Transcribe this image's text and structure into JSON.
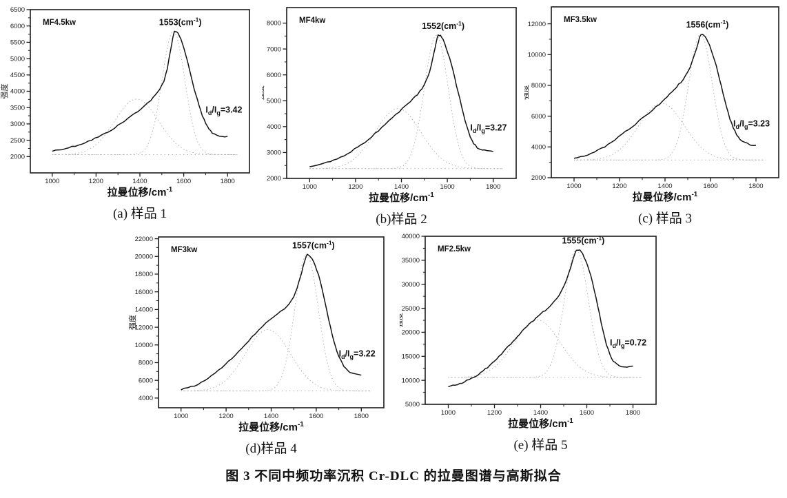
{
  "figure": {
    "caption": "图 3  不同中频功率沉积 Cr-DLC 的拉曼图谱与高斯拟合"
  },
  "axis": {
    "x_label": "拉曼位移/cm",
    "x_label_sup": "-1",
    "y_label": "强度"
  },
  "chart_data": [
    {
      "type": "line",
      "id": "a",
      "caption": "(a) 样品 1",
      "power_label": "MF4.5kw",
      "peak": 1553,
      "peak_label": "1553(cm⁻¹)",
      "id_ig": "=3.42",
      "xlabel": "拉曼位移/cm⁻¹",
      "ylabel": "强度",
      "x_ticks": [
        1000,
        1200,
        1400,
        1600,
        1800
      ],
      "y_ticks": [
        2000,
        2500,
        3000,
        3500,
        4000,
        4500,
        5000,
        5500,
        6000,
        6500
      ],
      "xlim": [
        900,
        1900
      ],
      "ylim": [
        1500,
        6500
      ],
      "baseline": 2060,
      "points": [
        [
          1000,
          2170
        ],
        [
          1030,
          2210
        ],
        [
          1060,
          2250
        ],
        [
          1090,
          2300
        ],
        [
          1120,
          2360
        ],
        [
          1150,
          2430
        ],
        [
          1180,
          2510
        ],
        [
          1210,
          2600
        ],
        [
          1240,
          2700
        ],
        [
          1270,
          2820
        ],
        [
          1300,
          2950
        ],
        [
          1330,
          3090
        ],
        [
          1360,
          3240
        ],
        [
          1390,
          3390
        ],
        [
          1420,
          3550
        ],
        [
          1450,
          3730
        ],
        [
          1470,
          3870
        ],
        [
          1490,
          4050
        ],
        [
          1510,
          4330
        ],
        [
          1525,
          4700
        ],
        [
          1540,
          5250
        ],
        [
          1550,
          5650
        ],
        [
          1558,
          5840
        ],
        [
          1568,
          5830
        ],
        [
          1580,
          5700
        ],
        [
          1595,
          5450
        ],
        [
          1610,
          5100
        ],
        [
          1625,
          4700
        ],
        [
          1640,
          4280
        ],
        [
          1655,
          3900
        ],
        [
          1670,
          3550
        ],
        [
          1685,
          3250
        ],
        [
          1700,
          3010
        ],
        [
          1715,
          2840
        ],
        [
          1730,
          2730
        ],
        [
          1750,
          2660
        ],
        [
          1775,
          2620
        ],
        [
          1800,
          2600
        ]
      ]
    },
    {
      "type": "line",
      "id": "b",
      "caption": "(b)样品 2",
      "power_label": "MF4kw",
      "peak": 1552,
      "peak_label": "1552(cm⁻¹)",
      "id_ig": "=3.27",
      "xlabel": "拉曼位移/cm⁻¹",
      "ylabel": "强度",
      "x_ticks": [
        1000,
        1200,
        1400,
        1600,
        1800
      ],
      "y_ticks": [
        2000,
        3000,
        4000,
        5000,
        6000,
        7000,
        8000
      ],
      "xlim": [
        900,
        1900
      ],
      "ylim": [
        2000,
        8600
      ],
      "baseline": 2380,
      "points": [
        [
          1000,
          2480
        ],
        [
          1030,
          2520
        ],
        [
          1060,
          2570
        ],
        [
          1090,
          2650
        ],
        [
          1120,
          2760
        ],
        [
          1150,
          2890
        ],
        [
          1180,
          3040
        ],
        [
          1210,
          3210
        ],
        [
          1240,
          3400
        ],
        [
          1270,
          3610
        ],
        [
          1300,
          3840
        ],
        [
          1330,
          4080
        ],
        [
          1360,
          4330
        ],
        [
          1390,
          4580
        ],
        [
          1420,
          4820
        ],
        [
          1440,
          4980
        ],
        [
          1460,
          5150
        ],
        [
          1480,
          5350
        ],
        [
          1500,
          5620
        ],
        [
          1515,
          5900
        ],
        [
          1530,
          6350
        ],
        [
          1542,
          6850
        ],
        [
          1552,
          7300
        ],
        [
          1560,
          7530
        ],
        [
          1570,
          7520
        ],
        [
          1582,
          7350
        ],
        [
          1595,
          7050
        ],
        [
          1610,
          6650
        ],
        [
          1625,
          6150
        ],
        [
          1640,
          5600
        ],
        [
          1655,
          5050
        ],
        [
          1670,
          4500
        ],
        [
          1685,
          4000
        ],
        [
          1700,
          3620
        ],
        [
          1715,
          3350
        ],
        [
          1730,
          3200
        ],
        [
          1750,
          3100
        ],
        [
          1775,
          3060
        ],
        [
          1800,
          3020
        ]
      ]
    },
    {
      "type": "line",
      "id": "c",
      "caption": "(c) 样品 3",
      "power_label": "MF3.5kw",
      "peak": 1556,
      "peak_label": "1556(cm⁻¹)",
      "id_ig": "=3.23",
      "xlabel": "拉曼位移/cm⁻¹",
      "ylabel": "强度",
      "x_ticks": [
        1000,
        1200,
        1400,
        1600,
        1800
      ],
      "y_ticks": [
        2000,
        4000,
        6000,
        8000,
        10000,
        12000
      ],
      "xlim": [
        900,
        1900
      ],
      "ylim": [
        2000,
        13100
      ],
      "baseline": 3150,
      "points": [
        [
          1000,
          3250
        ],
        [
          1030,
          3360
        ],
        [
          1060,
          3500
        ],
        [
          1090,
          3680
        ],
        [
          1120,
          3900
        ],
        [
          1150,
          4170
        ],
        [
          1180,
          4480
        ],
        [
          1210,
          4810
        ],
        [
          1240,
          5150
        ],
        [
          1270,
          5500
        ],
        [
          1300,
          5860
        ],
        [
          1330,
          6230
        ],
        [
          1360,
          6600
        ],
        [
          1390,
          6960
        ],
        [
          1410,
          7300
        ],
        [
          1430,
          7600
        ],
        [
          1450,
          7900
        ],
        [
          1470,
          8200
        ],
        [
          1490,
          8600
        ],
        [
          1510,
          9200
        ],
        [
          1525,
          9800
        ],
        [
          1540,
          10500
        ],
        [
          1552,
          11100
        ],
        [
          1560,
          11350
        ],
        [
          1570,
          11300
        ],
        [
          1582,
          11050
        ],
        [
          1595,
          10600
        ],
        [
          1610,
          10000
        ],
        [
          1625,
          9250
        ],
        [
          1640,
          8400
        ],
        [
          1655,
          7500
        ],
        [
          1670,
          6600
        ],
        [
          1685,
          5850
        ],
        [
          1700,
          5250
        ],
        [
          1715,
          4800
        ],
        [
          1730,
          4500
        ],
        [
          1750,
          4280
        ],
        [
          1775,
          4150
        ],
        [
          1800,
          4080
        ]
      ]
    },
    {
      "type": "line",
      "id": "d",
      "caption": "(d)样品 4",
      "power_label": "MF3kw",
      "peak": 1557,
      "peak_label": "1557(cm⁻¹)",
      "id_ig": "=3.22",
      "xlabel": "拉曼位移/cm⁻¹",
      "ylabel": "强度",
      "x_ticks": [
        1000,
        1200,
        1400,
        1600,
        1800
      ],
      "y_ticks": [
        4000,
        6000,
        8000,
        10000,
        12000,
        14000,
        16000,
        18000,
        20000,
        22000
      ],
      "xlim": [
        900,
        1900
      ],
      "ylim": [
        2900,
        22200
      ],
      "baseline": 4800,
      "points": [
        [
          1000,
          4950
        ],
        [
          1030,
          5150
        ],
        [
          1060,
          5400
        ],
        [
          1090,
          5750
        ],
        [
          1120,
          6200
        ],
        [
          1150,
          6750
        ],
        [
          1180,
          7400
        ],
        [
          1210,
          8100
        ],
        [
          1240,
          8850
        ],
        [
          1270,
          9650
        ],
        [
          1300,
          10450
        ],
        [
          1330,
          11250
        ],
        [
          1360,
          12050
        ],
        [
          1390,
          12750
        ],
        [
          1420,
          13350
        ],
        [
          1440,
          13750
        ],
        [
          1460,
          14150
        ],
        [
          1480,
          14700
        ],
        [
          1500,
          15500
        ],
        [
          1515,
          16400
        ],
        [
          1530,
          17700
        ],
        [
          1542,
          18900
        ],
        [
          1552,
          19800
        ],
        [
          1560,
          20200
        ],
        [
          1570,
          20100
        ],
        [
          1582,
          19700
        ],
        [
          1595,
          19000
        ],
        [
          1610,
          17900
        ],
        [
          1625,
          16400
        ],
        [
          1640,
          14700
        ],
        [
          1655,
          12900
        ],
        [
          1670,
          11200
        ],
        [
          1685,
          9800
        ],
        [
          1700,
          8700
        ],
        [
          1715,
          7900
        ],
        [
          1730,
          7350
        ],
        [
          1750,
          6900
        ],
        [
          1775,
          6700
        ],
        [
          1800,
          6600
        ]
      ]
    },
    {
      "type": "line",
      "id": "e",
      "caption": "(e) 样品 5",
      "power_label": "MF2.5kw",
      "peak": 1555,
      "peak_label": "1555(cm⁻¹)",
      "id_ig": "=0.72",
      "xlabel": "拉曼位移/cm⁻¹",
      "ylabel": "强度",
      "x_ticks": [
        1000,
        1200,
        1400,
        1600,
        1800
      ],
      "y_ticks": [
        5000,
        10000,
        15000,
        20000,
        25000,
        30000,
        35000,
        40000
      ],
      "xlim": [
        900,
        1900
      ],
      "ylim": [
        5000,
        40000
      ],
      "baseline": 10600,
      "points": [
        [
          1000,
          8800
        ],
        [
          1030,
          9100
        ],
        [
          1060,
          9500
        ],
        [
          1090,
          10100
        ],
        [
          1120,
          10900
        ],
        [
          1150,
          11900
        ],
        [
          1180,
          13100
        ],
        [
          1210,
          14500
        ],
        [
          1240,
          16000
        ],
        [
          1270,
          17600
        ],
        [
          1300,
          19200
        ],
        [
          1330,
          20700
        ],
        [
          1360,
          22100
        ],
        [
          1390,
          23400
        ],
        [
          1420,
          24600
        ],
        [
          1440,
          25400
        ],
        [
          1460,
          26400
        ],
        [
          1480,
          27700
        ],
        [
          1500,
          29500
        ],
        [
          1515,
          31300
        ],
        [
          1530,
          33600
        ],
        [
          1542,
          35500
        ],
        [
          1552,
          36800
        ],
        [
          1560,
          37200
        ],
        [
          1570,
          37000
        ],
        [
          1582,
          36300
        ],
        [
          1595,
          35000
        ],
        [
          1610,
          33000
        ],
        [
          1625,
          30300
        ],
        [
          1640,
          27100
        ],
        [
          1655,
          23700
        ],
        [
          1670,
          20400
        ],
        [
          1685,
          17500
        ],
        [
          1700,
          15300
        ],
        [
          1715,
          14000
        ],
        [
          1730,
          13300
        ],
        [
          1750,
          12950
        ],
        [
          1775,
          12850
        ],
        [
          1800,
          12950
        ]
      ]
    }
  ]
}
